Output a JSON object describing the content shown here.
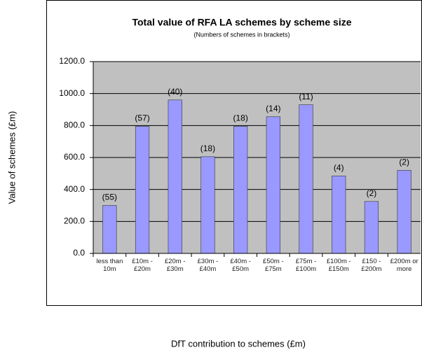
{
  "chart_data": {
    "type": "bar",
    "title": "Total value of RFA LA schemes by scheme size",
    "subtitle": "(Numbers of schemes in brackets)",
    "xlabel": "DfT contribution to schemes (£m)",
    "ylabel": "Value of schemes (£m)",
    "categories": [
      "less than 10m",
      "£10m - £20m",
      "£20m - £30m",
      "£30m - £40m",
      "£40m - £50m",
      "£50m - £75m",
      "£75m - £100m",
      "£100m - £150m",
      "£150 - £200m",
      "£200m or more"
    ],
    "values": [
      300,
      795,
      960,
      605,
      795,
      855,
      930,
      485,
      325,
      520
    ],
    "bar_annotations": [
      "(55)",
      "(57)",
      "(40)",
      "(18)",
      "(18)",
      "(14)",
      "(11)",
      "(4)",
      "(2)",
      "(2)"
    ],
    "color": "#9999ff",
    "ylim": [
      0,
      1200
    ],
    "yticks": [
      {
        "value": 0,
        "label": "0.0"
      },
      {
        "value": 200,
        "label": "200.0"
      },
      {
        "value": 400,
        "label": "400.0"
      },
      {
        "value": 600,
        "label": "600.0"
      },
      {
        "value": 800,
        "label": "800.0"
      },
      {
        "value": 1000,
        "label": "1000.0"
      },
      {
        "value": 1200,
        "label": "1200.0"
      }
    ],
    "grid": true
  }
}
